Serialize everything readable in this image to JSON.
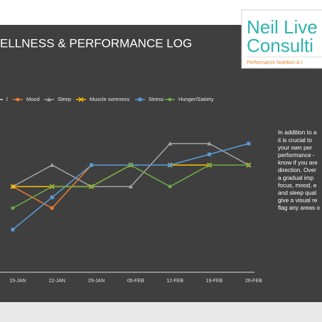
{
  "chart_data": {
    "type": "line",
    "title": "ELLNESS & PERFORMANCE LOG",
    "categories": [
      "15-JAN",
      "22-JAN",
      "29-JAN",
      "05-FEB",
      "12-FEB",
      "19-FEB",
      "26-FEB"
    ],
    "series": [
      {
        "name": "l",
        "color": "#dcdcdc",
        "marker": "none",
        "values": [
          null,
          null,
          null,
          null,
          null,
          null,
          null
        ]
      },
      {
        "name": "Mood",
        "color": "#ed7d31",
        "marker": "circle",
        "values": [
          3,
          2,
          4,
          4,
          4,
          4,
          4
        ]
      },
      {
        "name": "Sleep",
        "color": "#a5a5a5",
        "marker": "triangle",
        "values": [
          3,
          4,
          3,
          3,
          5,
          5,
          4
        ]
      },
      {
        "name": "Muscle soreness",
        "color": "#ffc000",
        "marker": "cross",
        "values": [
          3,
          3,
          3,
          4,
          4,
          4,
          4
        ]
      },
      {
        "name": "Stress",
        "color": "#5b9bd5",
        "marker": "square",
        "values": [
          1,
          2.5,
          4,
          4,
          4,
          4.5,
          5
        ]
      },
      {
        "name": "Hunger/Satiety",
        "color": "#70ad47",
        "marker": "circle",
        "values": [
          2,
          3,
          3,
          4,
          3,
          4,
          4
        ]
      }
    ],
    "ylim": [
      1,
      5
    ],
    "side_text": [
      "In addition to a",
      "it is crucial to",
      "your own per",
      "performance -",
      "know if you are",
      "direction. Over",
      "a gradual imp",
      "focus, mood, e",
      "and sleep qual",
      "give a visual re",
      "flag any areas o"
    ]
  },
  "logo": {
    "line1": "Neil Live",
    "line2": "Consulti",
    "tagline": "Performance Nutrition & I"
  }
}
